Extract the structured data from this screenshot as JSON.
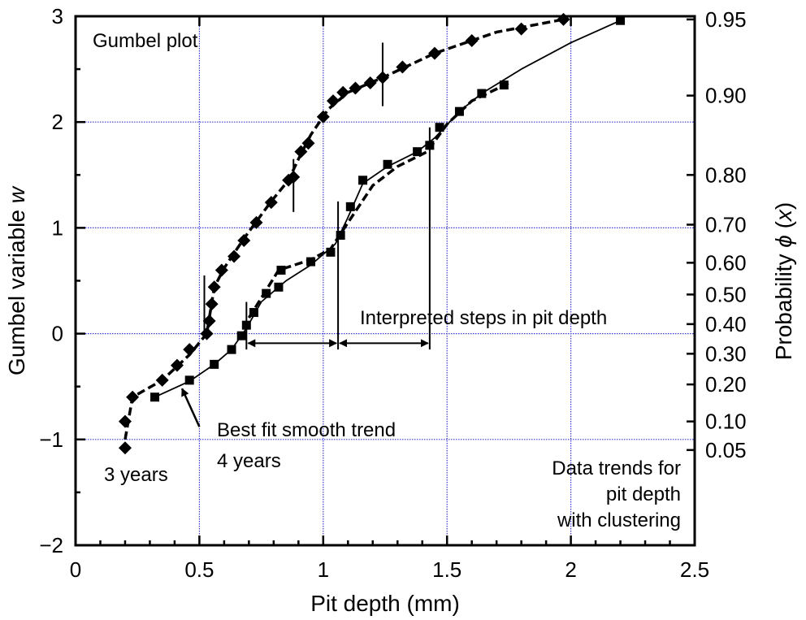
{
  "chart_data": {
    "type": "scatter",
    "title": "Gumbel plot",
    "xlabel": "Pit depth (mm)",
    "ylabel": "Gumbel variable w",
    "y2label": "Probability φ (x)",
    "xlim": [
      0,
      2.5
    ],
    "ylim": [
      -2,
      3
    ],
    "x_ticks": [
      "0",
      "0.5",
      "1",
      "1.5",
      "2",
      "2.5"
    ],
    "y_ticks": [
      "−2",
      "−1",
      "0",
      "1",
      "2",
      "3"
    ],
    "y2_ticks": [
      {
        "label": "0.95",
        "w": 2.97
      },
      {
        "label": "0.90",
        "w": 2.25
      },
      {
        "label": "0.80",
        "w": 1.5
      },
      {
        "label": "0.70",
        "w": 1.03
      },
      {
        "label": "0.60",
        "w": 0.67
      },
      {
        "label": "0.50",
        "w": 0.37
      },
      {
        "label": "0.40",
        "w": 0.09
      },
      {
        "label": "0.30",
        "w": -0.19
      },
      {
        "label": "0.20",
        "w": -0.48
      },
      {
        "label": "0.10",
        "w": -0.83
      },
      {
        "label": "0.05",
        "w": -1.1
      }
    ],
    "grid": true,
    "series": [
      {
        "name": "3 years",
        "marker": "diamond",
        "x": [
          0.2,
          0.2,
          0.23,
          0.35,
          0.41,
          0.46,
          0.53,
          0.54,
          0.55,
          0.56,
          0.59,
          0.64,
          0.68,
          0.73,
          0.79,
          0.86,
          0.88,
          0.91,
          0.94,
          1.0,
          1.04,
          1.08,
          1.13,
          1.19,
          1.24,
          1.32,
          1.45,
          1.6,
          1.8,
          1.97
        ],
        "w": [
          -1.08,
          -0.83,
          -0.6,
          -0.44,
          -0.3,
          -0.15,
          0.0,
          0.12,
          0.28,
          0.44,
          0.6,
          0.73,
          0.88,
          1.05,
          1.24,
          1.45,
          1.48,
          1.72,
          1.8,
          2.05,
          2.2,
          2.28,
          2.32,
          2.37,
          2.42,
          2.52,
          2.65,
          2.77,
          2.88,
          2.97
        ]
      },
      {
        "name": "4 years",
        "marker": "square",
        "x": [
          0.32,
          0.46,
          0.56,
          0.63,
          0.67,
          0.69,
          0.72,
          0.77,
          0.82,
          0.83,
          0.95,
          1.03,
          1.07,
          1.11,
          1.16,
          1.26,
          1.38,
          1.43,
          1.47,
          1.55,
          1.64,
          1.73,
          2.2
        ],
        "w": [
          -0.6,
          -0.44,
          -0.29,
          -0.15,
          -0.02,
          0.08,
          0.2,
          0.38,
          0.44,
          0.6,
          0.68,
          0.77,
          0.93,
          1.2,
          1.45,
          1.6,
          1.72,
          1.78,
          1.95,
          2.1,
          2.27,
          2.35,
          2.96
        ]
      }
    ],
    "trend_lines": [
      {
        "name": "3 years trend",
        "style": "dashed",
        "x": [
          0.2,
          0.23,
          0.35,
          0.46,
          0.53,
          0.56,
          0.6,
          0.68,
          0.79,
          0.86,
          0.9,
          0.95,
          1.02,
          1.1,
          1.24,
          1.45,
          1.7,
          1.97
        ],
        "w": [
          -1.0,
          -0.6,
          -0.44,
          -0.2,
          0.0,
          0.44,
          0.62,
          0.9,
          1.25,
          1.45,
          1.65,
          1.88,
          2.12,
          2.28,
          2.42,
          2.65,
          2.85,
          2.97
        ]
      },
      {
        "name": "Best fit smooth trend",
        "style": "solid",
        "x": [
          0.32,
          0.46,
          0.56,
          0.63,
          0.69,
          0.75,
          0.85,
          0.95,
          1.05,
          1.1,
          1.16,
          1.26,
          1.38,
          1.45,
          1.55,
          1.64,
          1.8,
          2.0,
          2.2
        ],
        "w": [
          -0.6,
          -0.45,
          -0.29,
          -0.15,
          0.05,
          0.3,
          0.5,
          0.65,
          0.85,
          1.1,
          1.42,
          1.58,
          1.72,
          1.85,
          2.1,
          2.27,
          2.5,
          2.75,
          2.96
        ]
      },
      {
        "name": "4 years trend",
        "style": "dashed",
        "x": [
          0.7,
          0.82,
          0.95,
          1.03,
          1.1,
          1.2,
          1.3,
          1.42,
          1.5,
          1.6,
          1.76
        ],
        "w": [
          0.15,
          0.6,
          0.7,
          0.8,
          1.05,
          1.4,
          1.58,
          1.72,
          1.98,
          2.2,
          2.38
        ]
      }
    ],
    "step_markers": [
      {
        "x": 0.52,
        "w_from": 0.0,
        "w_to": 0.55
      },
      {
        "x": 0.69,
        "w_from": -0.15,
        "w_to": 0.3
      },
      {
        "x": 0.88,
        "w_from": 1.15,
        "w_to": 1.65
      },
      {
        "x": 1.06,
        "w_from": -0.15,
        "w_to": 1.25
      },
      {
        "x": 1.24,
        "w_from": 2.15,
        "w_to": 2.75
      },
      {
        "x": 1.43,
        "w_from": -0.15,
        "w_to": 1.95
      }
    ],
    "step_arrows": [
      {
        "x_from": 0.69,
        "x_to": 1.06,
        "w": -0.09
      },
      {
        "x_from": 1.06,
        "x_to": 1.43,
        "w": -0.09
      }
    ],
    "annotations": {
      "steps": "Interpreted steps in pit depth",
      "best_fit": "Best fit smooth trend",
      "four_years": "4 years",
      "three_years": "3 years",
      "trend_line1": "Data trends for",
      "trend_line2": "pit depth",
      "trend_line3": "with clustering"
    },
    "pointer_arrow": {
      "from_x": 0.5,
      "from_w": -0.88,
      "to_x": 0.43,
      "to_w": -0.52
    }
  }
}
